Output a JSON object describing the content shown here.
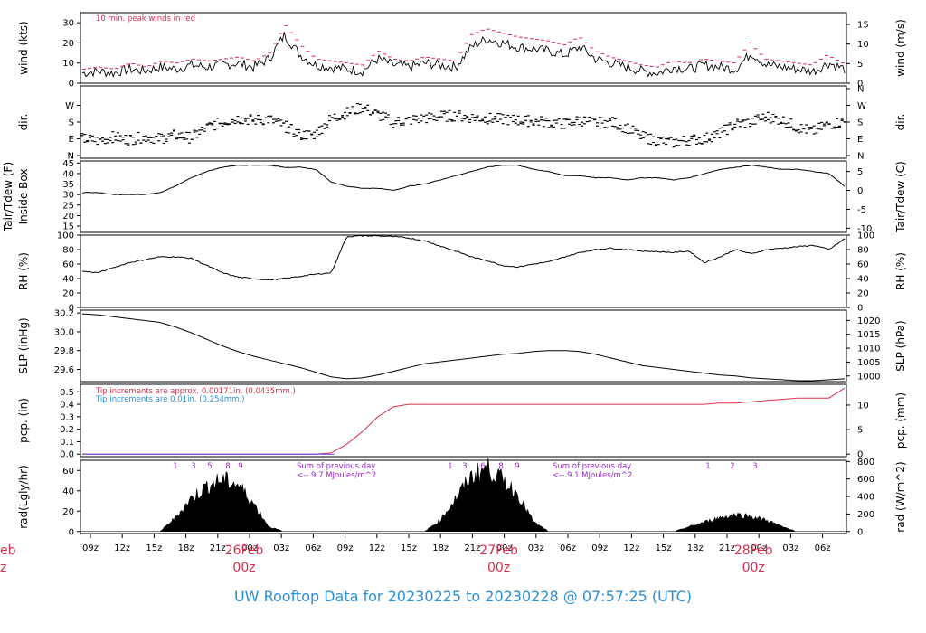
{
  "title": "UW Rooftop Data for 20230225  to  20230228 @ 07:57:25  (UTC)",
  "colors": {
    "title": "#2b8fd6",
    "date": "#d62f4f",
    "peak": "#d62f4f",
    "precip_note_blue": "#2b8fd6",
    "solar_label": "#9b27c9",
    "data": "#000000"
  },
  "time_axis": {
    "hours": [
      "09z",
      "12z",
      "15z",
      "18z",
      "21z",
      "00z",
      "03z",
      "06z",
      "09z",
      "12z",
      "15z",
      "18z",
      "21z",
      "00z",
      "03z",
      "06z",
      "09z",
      "12z",
      "15z",
      "18z",
      "21z",
      "00z",
      "03z",
      "06z"
    ],
    "day_labels": [
      {
        "day": "26Feb",
        "hour": "00z"
      },
      {
        "day": "27Feb",
        "hour": "00z"
      },
      {
        "day": "28Feb",
        "hour": "00z"
      }
    ],
    "cut_prev_day": "eb",
    "cut_prev_hour": "z"
  },
  "chart_data": [
    {
      "type": "line",
      "panel": "wind",
      "ylabel": "wind (kts)",
      "ylabel_right": "wind (m/s)",
      "ylim": [
        0,
        35
      ],
      "yticks": [
        0,
        10,
        20,
        30
      ],
      "yticks_right": [
        0,
        5,
        10,
        15
      ],
      "annotation": "10 min. peak winds in red",
      "series": [
        {
          "values": [
            5,
            6,
            5,
            7,
            6,
            8,
            7,
            9,
            8,
            9,
            10,
            8,
            12,
            24,
            14,
            9,
            8,
            7,
            6,
            12,
            9,
            8,
            10,
            9,
            8,
            18,
            22,
            20,
            18,
            17,
            16,
            14,
            18,
            12,
            10,
            8,
            6,
            5,
            8,
            7,
            9,
            8,
            7,
            15,
            9,
            8,
            7,
            6,
            10,
            7
          ]
        },
        {
          "values": [
            7,
            8,
            7,
            10,
            8,
            11,
            10,
            12,
            11,
            12,
            13,
            11,
            15,
            29,
            19,
            12,
            11,
            10,
            9,
            16,
            12,
            11,
            13,
            12,
            11,
            24,
            27,
            25,
            23,
            22,
            21,
            19,
            23,
            16,
            13,
            11,
            9,
            8,
            11,
            10,
            12,
            11,
            10,
            20,
            12,
            11,
            10,
            9,
            14,
            10
          ]
        }
      ]
    },
    {
      "type": "scatter",
      "panel": "dir",
      "ylabel": "dir.",
      "ylabel_right": "dir.",
      "yticks": [
        "N",
        "E",
        "S",
        "W",
        "N"
      ],
      "yticks_right": [
        "N",
        "E",
        "S",
        "W",
        "N"
      ],
      "series": [
        {
          "values": [
            90,
            80,
            100,
            85,
            100,
            90,
            110,
            95,
            150,
            180,
            200,
            190,
            195,
            160,
            110,
            115,
            200,
            230,
            260,
            220,
            180,
            190,
            200,
            210,
            215,
            205,
            200,
            195,
            190,
            185,
            180,
            170,
            190,
            175,
            180,
            150,
            100,
            80,
            70,
            85,
            90,
            120,
            170,
            180,
            210,
            190,
            150,
            130,
            170,
            180
          ]
        }
      ]
    },
    {
      "type": "line",
      "panel": "temperature",
      "ylabel": "Tair/Tdew (F)",
      "ylabel2": "Inside Box",
      "ylabel_right": "Tair/Tdew (C)",
      "ylim": [
        12,
        46
      ],
      "yticks": [
        15,
        20,
        25,
        30,
        35,
        40,
        45
      ],
      "yticks_right": [
        -10,
        -5,
        0,
        5
      ],
      "series": [
        {
          "values": [
            31,
            31,
            30,
            30,
            30,
            31,
            34,
            38,
            41,
            43,
            44,
            44,
            44,
            43,
            43,
            42,
            36,
            34,
            33,
            33,
            32,
            34,
            35,
            37,
            39,
            41,
            43,
            44,
            44,
            42,
            41,
            39,
            39,
            38,
            38,
            37,
            38,
            38,
            37,
            38,
            40,
            42,
            43,
            44,
            43,
            42,
            42,
            41,
            40,
            34
          ]
        }
      ]
    },
    {
      "type": "line",
      "panel": "rh",
      "ylabel": "RH (%)",
      "ylabel_right": "RH (%)",
      "ylim": [
        0,
        100
      ],
      "yticks": [
        0,
        20,
        40,
        60,
        80,
        100
      ],
      "yticks_right": [
        0,
        20,
        40,
        60,
        80,
        100
      ],
      "series": [
        {
          "values": [
            50,
            48,
            55,
            62,
            66,
            70,
            70,
            68,
            58,
            48,
            42,
            40,
            38,
            40,
            43,
            46,
            48,
            98,
            99,
            99,
            98,
            96,
            92,
            85,
            78,
            70,
            65,
            58,
            56,
            60,
            63,
            70,
            76,
            80,
            82,
            80,
            78,
            77,
            76,
            78,
            62,
            70,
            80,
            74,
            80,
            82,
            84,
            86,
            80,
            95
          ]
        }
      ]
    },
    {
      "type": "line",
      "panel": "slp",
      "ylabel": "SLP (inHg)",
      "ylabel_right": "SLP (hPa)",
      "ylim": [
        29.47,
        30.23
      ],
      "yticks": [
        29.6,
        29.8,
        30.0,
        30.2
      ],
      "yticks_right": [
        1000,
        1005,
        1010,
        1015,
        1020
      ],
      "series": [
        {
          "values": [
            30.19,
            30.18,
            30.16,
            30.14,
            30.12,
            30.1,
            30.05,
            29.99,
            29.92,
            29.85,
            29.79,
            29.74,
            29.7,
            29.66,
            29.62,
            29.57,
            29.52,
            29.5,
            29.51,
            29.54,
            29.58,
            29.62,
            29.66,
            29.68,
            29.7,
            29.72,
            29.74,
            29.76,
            29.77,
            29.79,
            29.8,
            29.8,
            29.79,
            29.76,
            29.72,
            29.68,
            29.64,
            29.62,
            29.6,
            29.58,
            29.56,
            29.54,
            29.53,
            29.51,
            29.5,
            29.49,
            29.48,
            29.48,
            29.49,
            29.5
          ]
        }
      ]
    },
    {
      "type": "line",
      "panel": "precip",
      "ylabel": "pcp. (in)",
      "ylabel_right": "pcp. (mm)",
      "ylim": [
        -0.02,
        0.56
      ],
      "yticks": [
        0.0,
        0.1,
        0.2,
        0.3,
        0.4,
        0.5
      ],
      "yticks_right": [
        0,
        5,
        10
      ],
      "note_red": "Tip increments are approx. 0.00171in. (0.0435mm.)",
      "note_blue": "Tip increments are 0.01in. (0.254mm.)",
      "series": [
        {
          "values": [
            0,
            0,
            0,
            0,
            0,
            0,
            0,
            0,
            0,
            0,
            0,
            0,
            0,
            0,
            0,
            0,
            0.01,
            0.08,
            0.18,
            0.3,
            0.38,
            0.4,
            0.4,
            0.4,
            0.4,
            0.4,
            0.4,
            0.4,
            0.4,
            0.4,
            0.4,
            0.4,
            0.4,
            0.4,
            0.4,
            0.4,
            0.4,
            0.4,
            0.4,
            0.4,
            0.4,
            0.41,
            0.41,
            0.42,
            0.43,
            0.44,
            0.45,
            0.45,
            0.45,
            0.53
          ]
        }
      ]
    },
    {
      "type": "area",
      "panel": "radiation",
      "ylabel": "rad(Lgly/hr)",
      "ylabel_right": "rad (W/m^2)",
      "ylim": [
        -2,
        70
      ],
      "yticks": [
        0,
        20,
        40,
        60
      ],
      "yticks_right": [
        0,
        200,
        400,
        600,
        800
      ],
      "daily_sum_1": "Sum of previous day",
      "daily_sum_1_value": "<-- 9.7 MJoules/m^2",
      "daily_sum_2": "Sum of previous day",
      "daily_sum_2_value": "<-- 9.1 MJoules/m^2",
      "hour_marks_day1": [
        "1",
        "3",
        "5",
        "8",
        "9"
      ],
      "hour_marks_day2": [
        "1",
        "3",
        "6",
        "8",
        "9"
      ],
      "hour_marks_day3": [
        "1",
        "2",
        "3"
      ],
      "series": [
        {
          "values": [
            0,
            0,
            0,
            0,
            0,
            0,
            15,
            35,
            48,
            55,
            50,
            30,
            5,
            0,
            0,
            0,
            0,
            0,
            0,
            0,
            0,
            0,
            0,
            12,
            35,
            58,
            68,
            55,
            40,
            10,
            0,
            0,
            0,
            0,
            0,
            0,
            0,
            0,
            0,
            5,
            10,
            15,
            18,
            16,
            12,
            5,
            0,
            0,
            0,
            0
          ]
        }
      ]
    }
  ]
}
